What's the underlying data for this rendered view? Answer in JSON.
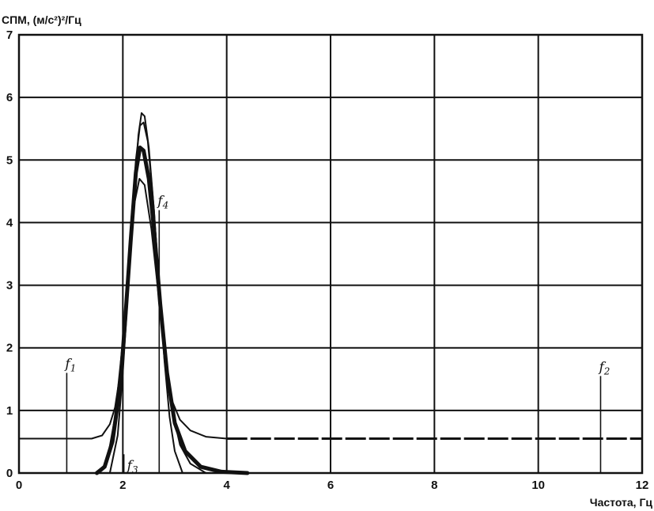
{
  "chart_data": {
    "type": "line",
    "ylabel": "СПМ, (м/с²)²/Гц",
    "xlabel": "Частота, Гц",
    "xlim": [
      0,
      12
    ],
    "ylim": [
      0,
      7
    ],
    "x_ticks": [
      0,
      2,
      4,
      6,
      8,
      10,
      12
    ],
    "y_ticks": [
      0,
      1,
      2,
      3,
      4,
      5,
      6,
      7
    ],
    "grid": true,
    "series": [
      {
        "style": "thin",
        "points": [
          [
            0,
            0.55
          ],
          [
            1.4,
            0.55
          ],
          [
            1.6,
            0.6
          ],
          [
            1.75,
            0.78
          ],
          [
            1.85,
            1.05
          ],
          [
            1.95,
            1.6
          ],
          [
            2.05,
            2.6
          ],
          [
            2.15,
            3.9
          ],
          [
            2.25,
            5.0
          ],
          [
            2.33,
            5.55
          ],
          [
            2.4,
            5.6
          ],
          [
            2.48,
            5.3
          ],
          [
            2.6,
            4.2
          ],
          [
            2.72,
            2.7
          ],
          [
            2.82,
            1.75
          ],
          [
            2.95,
            1.15
          ],
          [
            3.1,
            0.85
          ],
          [
            3.3,
            0.68
          ],
          [
            3.6,
            0.58
          ],
          [
            4.0,
            0.55
          ]
        ]
      },
      {
        "style": "dashed",
        "points": [
          [
            4.0,
            0.55
          ],
          [
            12,
            0.55
          ]
        ]
      },
      {
        "style": "bold",
        "points": [
          [
            1.5,
            0.0
          ],
          [
            1.65,
            0.1
          ],
          [
            1.8,
            0.5
          ],
          [
            1.95,
            1.4
          ],
          [
            2.05,
            2.5
          ],
          [
            2.15,
            3.7
          ],
          [
            2.25,
            4.8
          ],
          [
            2.33,
            5.2
          ],
          [
            2.4,
            5.15
          ],
          [
            2.5,
            4.7
          ],
          [
            2.6,
            3.9
          ],
          [
            2.72,
            2.7
          ],
          [
            2.85,
            1.6
          ],
          [
            3.0,
            0.8
          ],
          [
            3.2,
            0.35
          ],
          [
            3.5,
            0.1
          ],
          [
            3.9,
            0.02
          ],
          [
            4.4,
            0.0
          ]
        ]
      },
      {
        "style": "thin",
        "points": [
          [
            1.75,
            0.0
          ],
          [
            1.9,
            0.6
          ],
          [
            2.0,
            1.6
          ],
          [
            2.1,
            2.9
          ],
          [
            2.2,
            4.2
          ],
          [
            2.3,
            5.4
          ],
          [
            2.36,
            5.75
          ],
          [
            2.42,
            5.7
          ],
          [
            2.5,
            5.2
          ],
          [
            2.6,
            4.2
          ],
          [
            2.7,
            3.0
          ],
          [
            2.8,
            1.8
          ],
          [
            2.9,
            0.9
          ],
          [
            3.0,
            0.35
          ],
          [
            3.15,
            0.0
          ]
        ]
      },
      {
        "style": "thin",
        "points": [
          [
            1.55,
            0.0
          ],
          [
            1.7,
            0.2
          ],
          [
            1.85,
            0.9
          ],
          [
            2.0,
            2.1
          ],
          [
            2.12,
            3.4
          ],
          [
            2.22,
            4.3
          ],
          [
            2.32,
            4.7
          ],
          [
            2.42,
            4.6
          ],
          [
            2.55,
            3.9
          ],
          [
            2.68,
            2.9
          ],
          [
            2.8,
            1.9
          ],
          [
            2.95,
            1.0
          ],
          [
            3.1,
            0.45
          ],
          [
            3.3,
            0.15
          ],
          [
            3.6,
            0.0
          ]
        ]
      }
    ],
    "markers": [
      {
        "label": "f1",
        "x": 0.92,
        "y_top": 1.6
      },
      {
        "label": "f3",
        "x": 2.02,
        "y_top": 0.0
      },
      {
        "label": "f4",
        "x": 2.7,
        "y_top": 4.2
      },
      {
        "label": "f2",
        "x": 11.2,
        "y_top": 1.55
      }
    ]
  }
}
